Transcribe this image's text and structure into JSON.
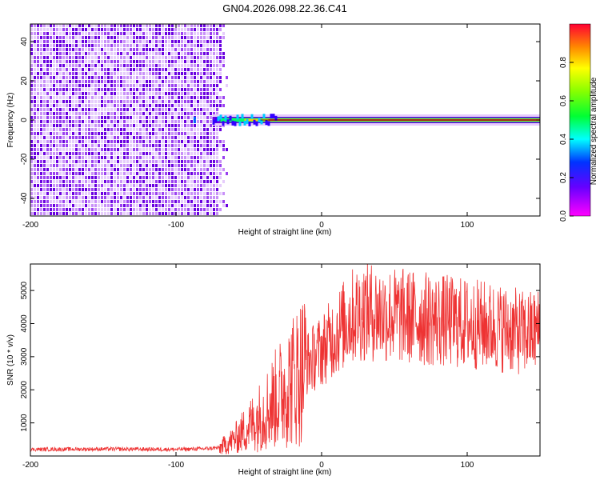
{
  "title": "GN04.2026.098.22.36.C41",
  "chart_data": [
    {
      "type": "heatmap",
      "xlabel": "Height of straight line (km)",
      "ylabel": "Frequency (Hz)",
      "xlim": [
        -200,
        150
      ],
      "ylim": [
        -49,
        49
      ],
      "xticks": [
        -200,
        -100,
        0,
        100
      ],
      "yticks": [
        -40,
        -20,
        0,
        20,
        40
      ],
      "noise_region_x": [
        -200,
        -70
      ],
      "signal_line_freq": 0,
      "signal_start_x": -75,
      "colorbar": {
        "label": "Normalized spectral amplitude",
        "range": [
          0.0,
          1.0
        ],
        "ticks": [
          0.0,
          0.2,
          0.4,
          0.6,
          0.8
        ]
      }
    },
    {
      "type": "line",
      "xlabel": "Height of straight line (km)",
      "ylabel": "SNR (10 * v/v)",
      "xlim": [
        -200,
        150
      ],
      "ylim": [
        0,
        5800
      ],
      "xticks": [
        -200,
        -100,
        0,
        100
      ],
      "yticks": [
        1000,
        2000,
        3000,
        4000,
        5000
      ],
      "series": [
        {
          "name": "SNR",
          "color": "#ee3333",
          "x": [
            -200,
            -150,
            -100,
            -80,
            -70,
            -60,
            -50,
            -40,
            -30,
            -20,
            -10,
            0,
            10,
            20,
            30,
            40,
            60,
            80,
            100,
            120,
            140,
            150
          ],
          "y": [
            200,
            210,
            200,
            220,
            250,
            500,
            900,
            1300,
            1800,
            2300,
            2800,
            3200,
            3700,
            4200,
            4400,
            4300,
            4200,
            4100,
            4000,
            3900,
            3700,
            3800
          ]
        }
      ]
    }
  ]
}
